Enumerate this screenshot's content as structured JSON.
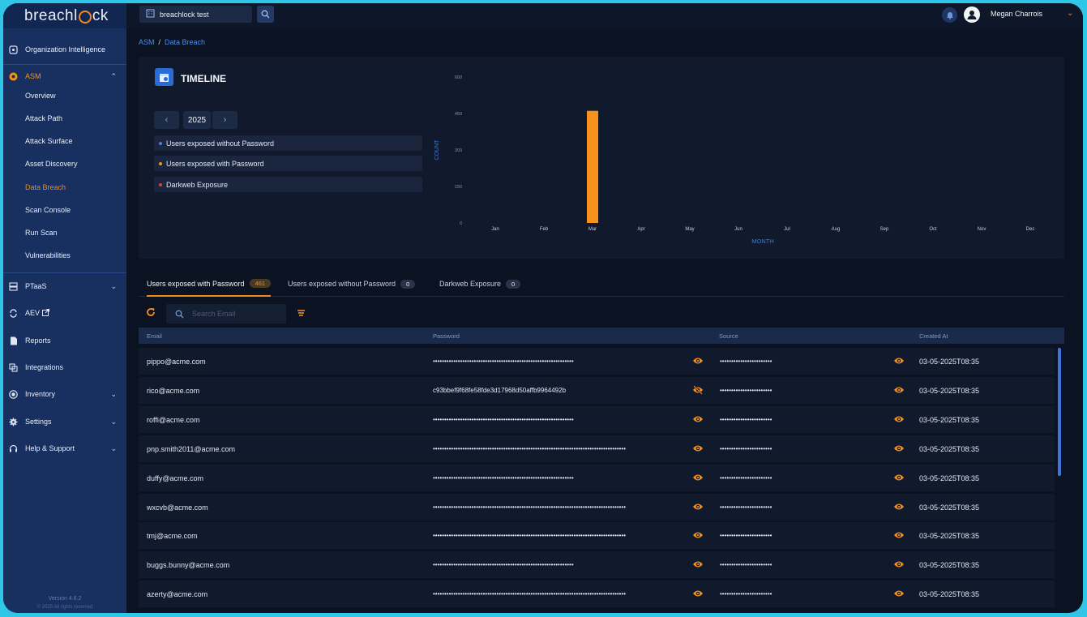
{
  "app": {
    "logo": "breachl",
    "logo_rest": "ck"
  },
  "topbar": {
    "org_name": "breachlock test",
    "user_name": "Megan Charrois"
  },
  "sidebar": {
    "items": [
      {
        "label": "Organization Intelligence",
        "icon": "org-intel-icon"
      },
      {
        "label": "ASM",
        "icon": "asm-icon",
        "expanded": true
      },
      {
        "label": "PTaaS",
        "icon": "ptaas-icon"
      },
      {
        "label": "AEV",
        "icon": "aev-icon"
      },
      {
        "label": "Reports",
        "icon": "reports-icon"
      },
      {
        "label": "Integrations",
        "icon": "integrations-icon"
      },
      {
        "label": "Inventory",
        "icon": "inventory-icon"
      },
      {
        "label": "Settings",
        "icon": "settings-icon"
      },
      {
        "label": "Help & Support",
        "icon": "help-icon"
      }
    ],
    "asm_sub": [
      "Overview",
      "Attack Path",
      "Attack Surface",
      "Asset Discovery",
      "Data Breach",
      "Scan Console",
      "Run Scan",
      "Vulnerabilities"
    ],
    "active_sub": "Data Breach",
    "version": "Version 4.6.2",
    "copyright": "© 2025 All rights reserved"
  },
  "breadcrumb": {
    "root": "ASM",
    "current": "Data Breach"
  },
  "timeline": {
    "title": "TIMELINE",
    "year": "2025",
    "legend": [
      {
        "label": "Users exposed without Password",
        "color": "#4f7fd9"
      },
      {
        "label": "Users exposed with Password",
        "color": "#f7921e"
      },
      {
        "label": "Darkweb Exposure",
        "color": "#e0403a"
      }
    ]
  },
  "chart_data": {
    "type": "bar",
    "categories": [
      "Jan",
      "Feb",
      "Mar",
      "Apr",
      "May",
      "Jun",
      "Jul",
      "Aug",
      "Sep",
      "Oct",
      "Nov",
      "Dec"
    ],
    "series": [
      {
        "name": "Users exposed without Password",
        "values": [
          0,
          0,
          0,
          0,
          0,
          0,
          0,
          0,
          0,
          0,
          0,
          0
        ],
        "color": "#4f7fd9"
      },
      {
        "name": "Users exposed with Password",
        "values": [
          0,
          0,
          461,
          0,
          0,
          0,
          0,
          0,
          0,
          0,
          0,
          0
        ],
        "color": "#f7921e"
      },
      {
        "name": "Darkweb Exposure",
        "values": [
          0,
          0,
          0,
          0,
          0,
          0,
          0,
          0,
          0,
          0,
          0,
          0
        ],
        "color": "#e0403a"
      }
    ],
    "yticks": [
      "0",
      "150",
      "300",
      "450",
      "600"
    ],
    "ylim": [
      0,
      600
    ],
    "xlabel": "MONTH",
    "ylabel": "COUNT"
  },
  "tabs": [
    {
      "label": "Users exposed with Password",
      "count": "461",
      "active": true
    },
    {
      "label": "Users exposed without Password",
      "count": "0"
    },
    {
      "label": "Darkweb Exposure",
      "count": "0"
    }
  ],
  "search": {
    "placeholder": "Search Email"
  },
  "table": {
    "columns": [
      "Email",
      "Password",
      "Source",
      "Created At"
    ],
    "rows": [
      {
        "email": "pippo@acme.com",
        "password": "••••••••••••••••••••••••••••••••••••••••••••••••••••••••••••••",
        "pw_visible": false,
        "source": "•••••••••••••••••••••••",
        "created": "03-05-2025T08:35"
      },
      {
        "email": "rico@acme.com",
        "password": "c93bbef9f68fe58fde3d17968d50affb9964492b",
        "pw_visible": true,
        "source": "•••••••••••••••••••••••",
        "created": "03-05-2025T08:35"
      },
      {
        "email": "roffi@acme.com",
        "password": "••••••••••••••••••••••••••••••••••••••••••••••••••••••••••••••",
        "pw_visible": false,
        "source": "•••••••••••••••••••••••",
        "created": "03-05-2025T08:35"
      },
      {
        "email": "pnp.smith2011@acme.com",
        "password": "•••••••••••••••••••••••••••••••••••••••••••••••••••••••••••••••••••••••••••••••••••••",
        "pw_visible": false,
        "source": "•••••••••••••••••••••••",
        "created": "03-05-2025T08:35"
      },
      {
        "email": "duffy@acme.com",
        "password": "••••••••••••••••••••••••••••••••••••••••••••••••••••••••••••••",
        "pw_visible": false,
        "source": "•••••••••••••••••••••••",
        "created": "03-05-2025T08:35"
      },
      {
        "email": "wxcvb@acme.com",
        "password": "•••••••••••••••••••••••••••••••••••••••••••••••••••••••••••••••••••••••••••••••••••••",
        "pw_visible": false,
        "source": "•••••••••••••••••••••••",
        "created": "03-05-2025T08:35"
      },
      {
        "email": "tmj@acme.com",
        "password": "•••••••••••••••••••••••••••••••••••••••••••••••••••••••••••••••••••••••••••••••••••••",
        "pw_visible": false,
        "source": "•••••••••••••••••••••••",
        "created": "03-05-2025T08:35"
      },
      {
        "email": "buggs.bunny@acme.com",
        "password": "••••••••••••••••••••••••••••••••••••••••••••••••••••••••••••••",
        "pw_visible": false,
        "source": "•••••••••••••••••••••••",
        "created": "03-05-2025T08:35"
      },
      {
        "email": "azerty@acme.com",
        "password": "•••••••••••••••••••••••••••••••••••••••••••••••••••••••••••••••••••••••••••••••••••••",
        "pw_visible": false,
        "source": "•••••••••••••••••••••••",
        "created": "03-05-2025T08:35"
      }
    ]
  },
  "colors": {
    "accent": "#f7921e",
    "sidebar": "#17305f",
    "link": "#4f8ce8"
  }
}
